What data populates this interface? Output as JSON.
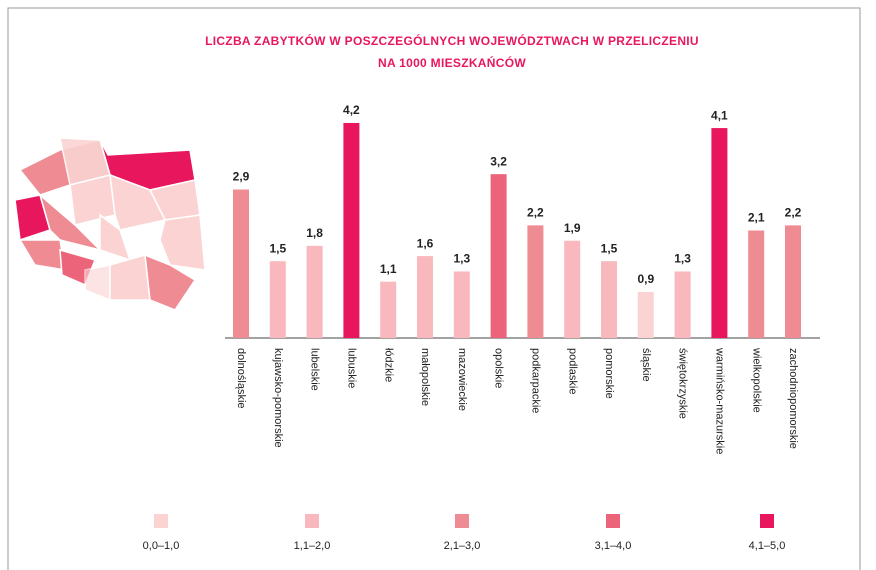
{
  "chart_data": {
    "type": "bar",
    "title": [
      "LICZBA ZABYTKÓW W POSZCZEGÓLNYCH WOJEWÓDZTWACH W PRZELICZENIU",
      "NA 1000 MIESZKAŃCÓW"
    ],
    "categories": [
      "dolnośląskie",
      "kujawsko-pomorskie",
      "lubelskie",
      "lubuskie",
      "łódzkie",
      "małopolskie",
      "mazowieckie",
      "opolskie",
      "podkarpackie",
      "podlaskie",
      "pomorskie",
      "śląskie",
      "świętokrzyskie",
      "warmińsko-mazurskie",
      "wielkopolskie",
      "zachodniopomorskie"
    ],
    "values": [
      2.9,
      1.5,
      1.8,
      4.2,
      1.1,
      1.6,
      1.3,
      3.2,
      2.2,
      1.9,
      1.5,
      0.9,
      1.3,
      4.1,
      2.1,
      2.2
    ],
    "value_labels": [
      "2,9",
      "1,5",
      "1,8",
      "4,2",
      "1,1",
      "1,6",
      "1,3",
      "3,2",
      "2,2",
      "1,9",
      "1,5",
      "0,9",
      "1,3",
      "4,1",
      "2,1",
      "2,2"
    ],
    "colors": [
      "#ef8c93",
      "#f9b8bd",
      "#f9b8bd",
      "#e8175d",
      "#f9b8bd",
      "#f9b8bd",
      "#f9b8bd",
      "#ec6479",
      "#ef8c93",
      "#f9b8bd",
      "#f9b8bd",
      "#fbd3d3",
      "#f9b8bd",
      "#e8175d",
      "#ef8c93",
      "#ef8c93"
    ],
    "legend": [
      {
        "label": "0,0–1,0",
        "color": "#fbd3d3"
      },
      {
        "label": "1,1–2,0",
        "color": "#f9b8bd"
      },
      {
        "label": "2,1–3,0",
        "color": "#ef8c93"
      },
      {
        "label": "3,1–4,0",
        "color": "#ec6479"
      },
      {
        "label": "4,1–5,0",
        "color": "#e8175d"
      }
    ]
  }
}
